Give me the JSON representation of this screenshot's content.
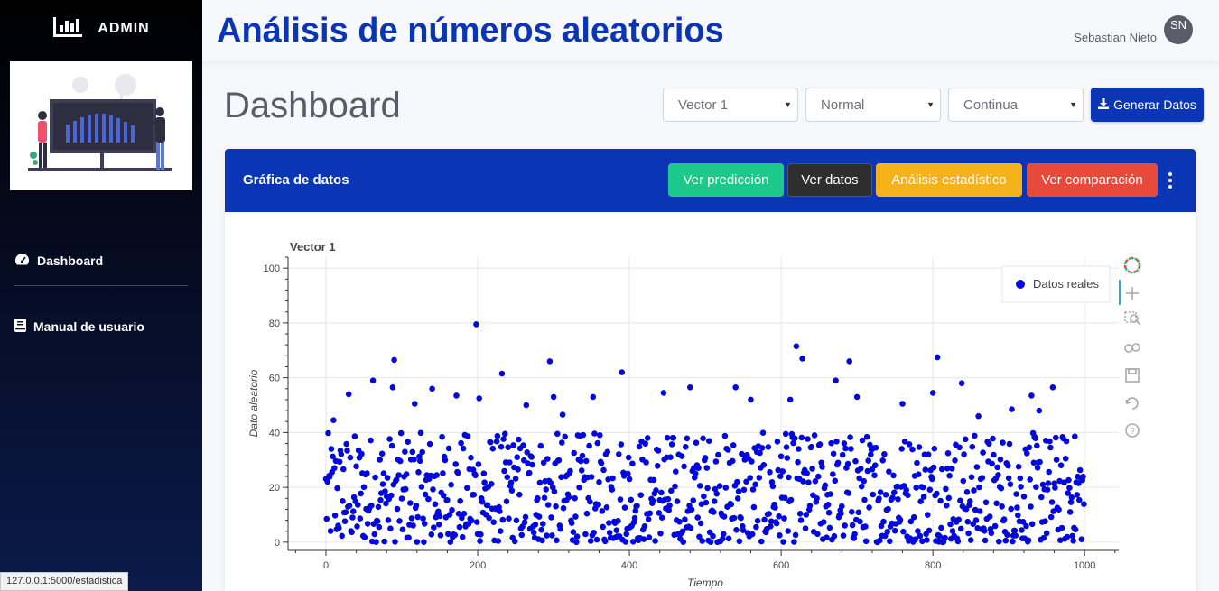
{
  "sidebar": {
    "brand": "ADMIN",
    "brand_icon": "bar-chart-icon",
    "items": [
      {
        "label": "Dashboard",
        "icon": "tachometer-icon"
      },
      {
        "label": "Manual de usuario",
        "icon": "book-icon"
      }
    ]
  },
  "topbar": {
    "title": "Análisis de números aleatorios",
    "user_name": "Sebastian Nieto",
    "avatar_initials": "SN"
  },
  "page": {
    "title": "Dashboard",
    "selects": [
      {
        "value": "Vector 1"
      },
      {
        "value": "Normal"
      },
      {
        "value": "Continua"
      }
    ],
    "generate_label": "Generar Datos"
  },
  "card": {
    "title": "Gráfica de datos",
    "buttons": [
      {
        "label": "Ver predicción",
        "color": "#1cc88a"
      },
      {
        "label": "Ver datos",
        "color": "#2e2e2e"
      },
      {
        "label": "Análisis estadístico",
        "color": "#f6b21b"
      },
      {
        "label": "Ver comparación",
        "color": "#e74a3b"
      }
    ]
  },
  "status_bar": "127.0.0.1:5000/estadistica",
  "chart_data": {
    "type": "scatter",
    "title": "Vector 1",
    "xlabel": "Tiempo",
    "ylabel": "Dato aleatorio",
    "xlim": [
      -50,
      1045
    ],
    "ylim": [
      -3,
      104
    ],
    "x_ticks": [
      0,
      200,
      400,
      600,
      800,
      1000
    ],
    "y_ticks": [
      0,
      20,
      40,
      60,
      80,
      100
    ],
    "grid": true,
    "legend": {
      "placement": "top-right",
      "entries": [
        "Datos reales"
      ]
    },
    "series": [
      {
        "name": "Datos reales",
        "color": "#0000ff",
        "n": 1000,
        "note_values": "1000 points, x = 0..999 (index), y mostly 0-40 with a few outliers",
        "outliers": [
          {
            "x": 198,
            "y": 79.5
          },
          {
            "x": 90,
            "y": 66.5
          },
          {
            "x": 295,
            "y": 66
          },
          {
            "x": 620,
            "y": 71.5
          },
          {
            "x": 628,
            "y": 67
          },
          {
            "x": 690,
            "y": 66
          },
          {
            "x": 806,
            "y": 67.5
          },
          {
            "x": 232,
            "y": 61.5
          },
          {
            "x": 390,
            "y": 62
          },
          {
            "x": 62,
            "y": 59
          },
          {
            "x": 672,
            "y": 59
          },
          {
            "x": 838,
            "y": 58
          },
          {
            "x": 958,
            "y": 56.5
          },
          {
            "x": 140,
            "y": 56
          },
          {
            "x": 480,
            "y": 56.5
          },
          {
            "x": 540,
            "y": 56.5
          },
          {
            "x": 88,
            "y": 56.5
          },
          {
            "x": 30,
            "y": 54
          },
          {
            "x": 445,
            "y": 54.5
          },
          {
            "x": 800,
            "y": 54.5
          },
          {
            "x": 930,
            "y": 53.5
          },
          {
            "x": 300,
            "y": 53
          },
          {
            "x": 172,
            "y": 53.5
          },
          {
            "x": 352,
            "y": 53
          },
          {
            "x": 202,
            "y": 52.5
          },
          {
            "x": 560,
            "y": 52
          },
          {
            "x": 612,
            "y": 52
          },
          {
            "x": 700,
            "y": 53
          },
          {
            "x": 117,
            "y": 50.5
          },
          {
            "x": 264,
            "y": 50
          },
          {
            "x": 760,
            "y": 50.5
          },
          {
            "x": 10,
            "y": 44.5
          },
          {
            "x": 312,
            "y": 46.5
          },
          {
            "x": 860,
            "y": 46
          },
          {
            "x": 904,
            "y": 48.5
          },
          {
            "x": 940,
            "y": 48
          }
        ]
      }
    ]
  }
}
